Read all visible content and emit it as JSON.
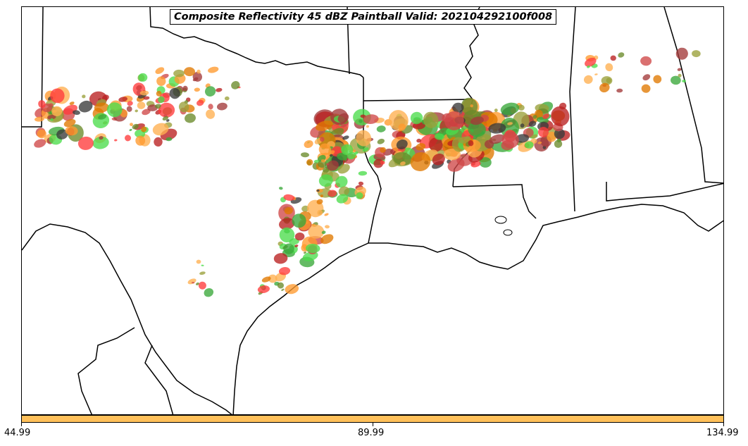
{
  "title": "Composite Reflectivity 45 dBZ Paintball Valid: 202104292100f008",
  "colorbar": {
    "color": "#ffc05a",
    "ticks": [
      "44.99",
      "89.99",
      "134.99"
    ]
  },
  "palette": [
    "#ff3b3b",
    "#ff9a2e",
    "#a33a3a",
    "#3aa83a",
    "#ba2020",
    "#e07800",
    "#9aa03a",
    "#3a3a3a",
    "#4cdc4c",
    "#ffb050",
    "#6a8a2a",
    "#d04848"
  ],
  "map": {
    "land_color": "#ffffff",
    "border_color": "#000000",
    "regions": [
      "Texas",
      "Oklahoma",
      "Arkansas",
      "Louisiana",
      "Mississippi",
      "Alabama",
      "Gulf of Mexico",
      "Mexico"
    ]
  }
}
